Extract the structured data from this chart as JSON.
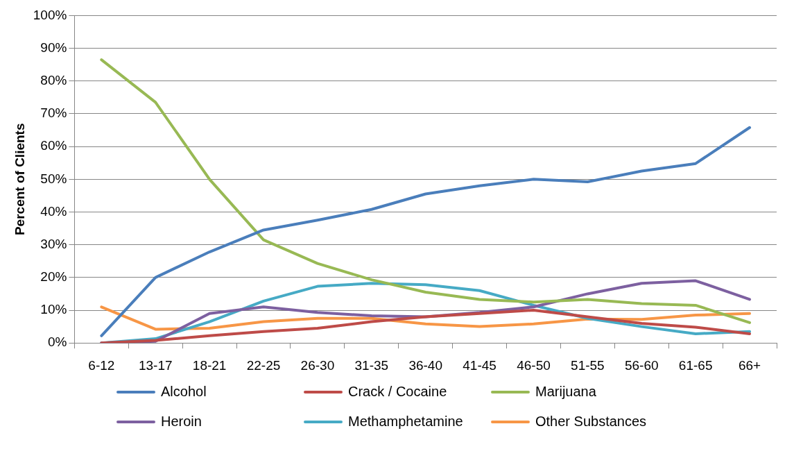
{
  "chart_data": {
    "type": "line",
    "ylabel": "Percent of Clients",
    "categories": [
      "6-12",
      "13-17",
      "18-21",
      "22-25",
      "26-30",
      "31-35",
      "36-40",
      "41-45",
      "46-50",
      "51-55",
      "56-60",
      "61-65",
      "66+"
    ],
    "series": [
      {
        "name": "Alcohol",
        "color": "#4a7ebb",
        "values": [
          2.2,
          20,
          27.8,
          34.5,
          37.5,
          40.8,
          45.5,
          48,
          50,
          49.2,
          52.5,
          54.8,
          65.8
        ]
      },
      {
        "name": "Crack / Cocaine",
        "color": "#be4b48",
        "values": [
          0,
          0.8,
          2.2,
          3.5,
          4.5,
          6.5,
          8,
          9,
          10,
          8,
          6,
          4.8,
          2.8
        ]
      },
      {
        "name": "Marijuana",
        "color": "#98b954",
        "values": [
          86.5,
          73.5,
          50,
          31.5,
          24.3,
          19.3,
          15.5,
          13.3,
          12.5,
          13.3,
          12,
          11.5,
          6.2
        ]
      },
      {
        "name": "Heroin",
        "color": "#7d60a0",
        "values": [
          0,
          0.5,
          9,
          11,
          9.3,
          8.3,
          8,
          9.3,
          11,
          15,
          18.2,
          19,
          13.3
        ]
      },
      {
        "name": "Methamphetamine",
        "color": "#46aac5",
        "values": [
          0,
          1.3,
          6.5,
          12.8,
          17.3,
          18.2,
          17.8,
          16,
          11.5,
          7.5,
          5,
          2.8,
          3.5
        ]
      },
      {
        "name": "Other Substances",
        "color": "#f79646",
        "values": [
          11,
          4.2,
          4.5,
          6.5,
          7.5,
          7.5,
          5.8,
          5,
          5.8,
          7.3,
          7.2,
          8.5,
          9
        ]
      }
    ],
    "ylim": [
      0,
      100
    ],
    "yticks": [
      {
        "value": 0,
        "label": "0%"
      },
      {
        "value": 10,
        "label": "10%"
      },
      {
        "value": 20,
        "label": "20%"
      },
      {
        "value": 30,
        "label": "30%"
      },
      {
        "value": 40,
        "label": "40%"
      },
      {
        "value": 50,
        "label": "50%"
      },
      {
        "value": 60,
        "label": "60%"
      },
      {
        "value": 70,
        "label": "70%"
      },
      {
        "value": 80,
        "label": "80%"
      },
      {
        "value": 90,
        "label": "90%"
      },
      {
        "value": 100,
        "label": "100%"
      }
    ],
    "grid": "y",
    "legend": "bottom",
    "marker": "none",
    "line_style": "solid"
  }
}
